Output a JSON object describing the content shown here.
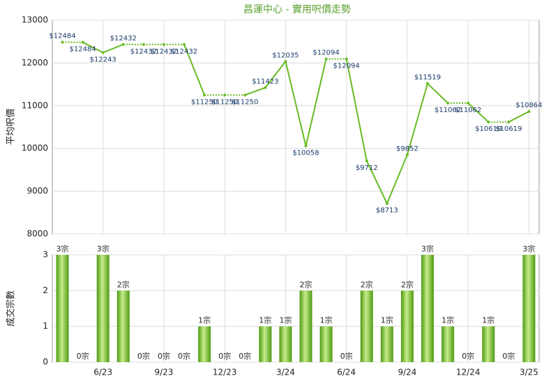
{
  "chart_data": [
    {
      "type": "line",
      "title": "昌運中心 - 實用呎價走勢",
      "y_label": "平均呎價",
      "categories": [
        null,
        null,
        "6/23",
        null,
        null,
        "9/23",
        null,
        null,
        "12/23",
        null,
        null,
        "3/24",
        null,
        null,
        "6/24",
        null,
        null,
        "9/24",
        null,
        null,
        "12/24",
        null,
        null,
        "3/25"
      ],
      "values": [
        12484,
        12484,
        12243,
        12432,
        12432,
        12432,
        12432,
        11250,
        11250,
        11250,
        11423,
        12035,
        10058,
        12094,
        12094,
        9712,
        8713,
        9852,
        11519,
        11062,
        11062,
        10619,
        10619,
        10864
      ],
      "value_labels": [
        "$12484",
        "$12484",
        "$12243",
        "$12432",
        "$12432",
        "$12432",
        "$12432",
        "$11250",
        "$11250",
        "$11250",
        "$11423",
        "$12035",
        "$10058",
        "$12094",
        "$12094",
        "$9712",
        "$8713",
        "$9852",
        "$11519",
        "$11062",
        "$11062",
        "$10619",
        "$10619",
        "$10864"
      ],
      "color": "#66bb22",
      "ylim": [
        8000,
        13000
      ],
      "yticks": [
        8000,
        9000,
        10000,
        11000,
        12000,
        13000
      ],
      "grid": true
    },
    {
      "type": "bar",
      "y_label": "成交宗數",
      "categories": [
        null,
        null,
        "6/23",
        null,
        null,
        "9/23",
        null,
        null,
        "12/23",
        null,
        null,
        "3/24",
        null,
        null,
        "6/24",
        null,
        null,
        "9/24",
        null,
        null,
        "12/24",
        null,
        null,
        "3/25"
      ],
      "values": [
        3,
        0,
        3,
        2,
        0,
        0,
        0,
        1,
        0,
        0,
        1,
        1,
        2,
        1,
        0,
        2,
        1,
        2,
        3,
        1,
        0,
        1,
        0,
        3
      ],
      "value_labels": [
        "3宗",
        "0宗",
        "3宗",
        "2宗",
        "0宗",
        "0宗",
        "0宗",
        "1宗",
        "0宗",
        "0宗",
        "1宗",
        "1宗",
        "2宗",
        "1宗",
        "0宗",
        "2宗",
        "1宗",
        "2宗",
        "3宗",
        "1宗",
        "0宗",
        "1宗",
        "0宗",
        "3宗"
      ],
      "color": "#66bb22",
      "ylim": [
        0,
        3
      ],
      "yticks": [
        0,
        1,
        2,
        3
      ],
      "grid": true
    }
  ]
}
